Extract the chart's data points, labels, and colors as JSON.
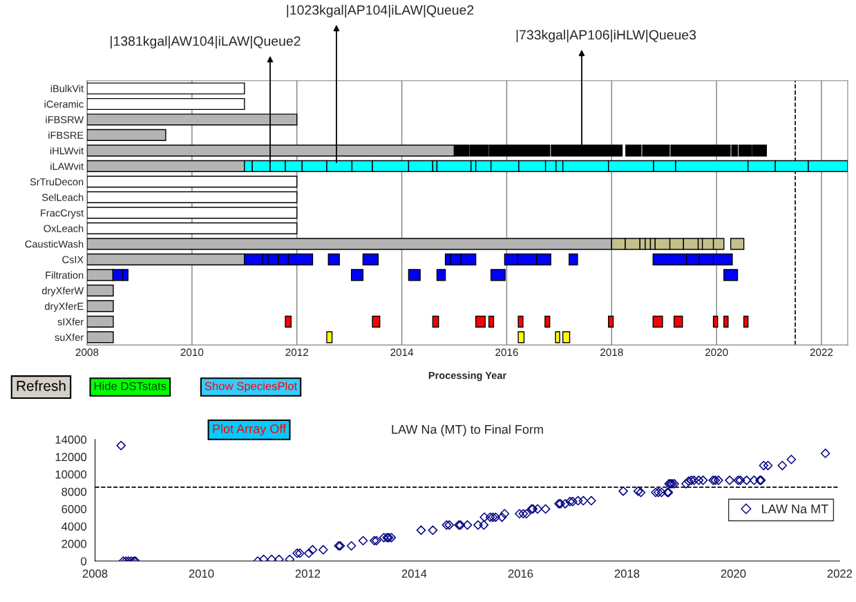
{
  "chart_data": [
    {
      "type": "bar",
      "orientation": "horizontal",
      "categories": [
        "iBulkVit",
        "iCeramic",
        "iFBSRW",
        "iFBSRE",
        "iHLWvit",
        "iLAWvit",
        "SrTruDecon",
        "SelLeach",
        "FracCryst",
        "OxLeach",
        "CausticWash",
        "CsIX",
        "Filtration",
        "dryXferW",
        "dryXferE",
        "sIXfer",
        "suXfer"
      ],
      "xlabel": "Processing Year",
      "xlim": [
        2008,
        2022.5
      ],
      "xticks": [
        2008,
        2010,
        2012,
        2014,
        2016,
        2018,
        2020,
        2022
      ],
      "grid": "x",
      "ref_lines": [
        {
          "axis": "x",
          "value": 2021.5,
          "color": "#000000",
          "line_style": "dashed"
        }
      ],
      "annotations": [
        "|1381kgal|AW104|iLAW|Queue2",
        "|1023kgal|AP104|iLAW|Queue2",
        "|733kgal|AP106|iHLW|Queue3",
        "Refresh",
        "Hide DSTstats",
        "Show SpeciesPlot"
      ],
      "series": [
        {
          "base": [
            2008,
            2008,
            2008,
            2008,
            2008,
            2008,
            2008,
            2008,
            2008,
            2008,
            2008,
            2008,
            2008,
            2008,
            2008,
            2008,
            2008
          ],
          "values": [
            3,
            3,
            4,
            1.5,
            7,
            3,
            4,
            4,
            4,
            4,
            10,
            3,
            0.5,
            0.5,
            0.5,
            0.5,
            0.5
          ],
          "colors": [
            "#ffffff",
            "#ffffff",
            "#b4b4b4",
            "#b4b4b4",
            "#b4b4b4",
            "#b4b4b4",
            "#ffffff",
            "#ffffff",
            "#ffffff",
            "#ffffff",
            "#b4b4b4",
            "#b4b4b4",
            "#b4b4b4",
            "#b4b4b4",
            "#b4b4b4",
            "#b4b4b4",
            "#b4b4b4"
          ]
        },
        {
          "base": [
            null,
            null,
            null,
            null,
            2015.0,
            2011.0,
            null,
            null,
            null,
            null,
            2018.0,
            2011.0,
            2008.49,
            null,
            null,
            2011.78,
            2012.57
          ],
          "values": [
            null,
            null,
            null,
            null,
            0.28,
            0.15,
            null,
            null,
            null,
            null,
            0.26,
            0.35,
            0.19,
            null,
            null,
            0.11,
            0.1
          ],
          "colors": [
            null,
            null,
            null,
            null,
            "#000000",
            "#00ffff",
            null,
            null,
            null,
            null,
            "#c4c08c",
            "#0000ff",
            "#0000ff",
            null,
            null,
            "#ff0000",
            "#ffff00"
          ]
        },
        {
          "base": [
            null,
            null,
            null,
            null,
            2015.3,
            2011.15,
            null,
            null,
            null,
            null,
            2018.26,
            2011.35,
            2008.68,
            null,
            null,
            2013.44,
            2016.22
          ],
          "values": [
            null,
            null,
            null,
            null,
            0.35,
            0.34,
            null,
            null,
            null,
            null,
            0.28,
            0.1,
            0.1,
            null,
            null,
            0.14,
            0.11
          ],
          "colors": [
            null,
            null,
            null,
            null,
            "#000000",
            "#00ffff",
            null,
            null,
            null,
            null,
            "#c4c08c",
            "#0000ff",
            "#0000ff",
            null,
            null,
            "#ff0000",
            "#ffff00"
          ]
        },
        {
          "base": [
            null,
            null,
            null,
            null,
            2015.67,
            2011.49,
            null,
            null,
            null,
            null,
            2018.54,
            2011.45,
            2013.04,
            null,
            null,
            2014.59,
            2016.93
          ],
          "values": [
            null,
            null,
            null,
            null,
            1.15,
            0.29,
            null,
            null,
            null,
            null,
            0.1,
            0.2,
            0.22,
            null,
            null,
            0.11,
            0.08
          ],
          "colors": [
            null,
            null,
            null,
            null,
            "#000000",
            "#00ffff",
            null,
            null,
            null,
            null,
            "#c4c08c",
            "#0000ff",
            "#0000ff",
            null,
            null,
            "#ff0000",
            "#ffff00"
          ]
        },
        {
          "base": [
            null,
            null,
            null,
            null,
            2016.85,
            2011.78,
            null,
            null,
            null,
            null,
            2018.64,
            2011.65,
            2014.13,
            null,
            null,
            2015.41,
            2017.07
          ],
          "values": [
            null,
            null,
            null,
            null,
            1.35,
            0.32,
            null,
            null,
            null,
            null,
            0.1,
            0.19,
            0.22,
            null,
            null,
            0.18,
            0.13
          ],
          "colors": [
            null,
            null,
            null,
            null,
            "#000000",
            "#00ffff",
            null,
            null,
            null,
            null,
            "#c4c08c",
            "#0000ff",
            "#0000ff",
            null,
            null,
            "#ff0000",
            "#ffff00"
          ]
        },
        {
          "base": [
            null,
            null,
            null,
            null,
            2018.27,
            2012.1,
            null,
            null,
            null,
            null,
            2018.74,
            2011.84,
            2014.67,
            null,
            null,
            2015.66,
            null
          ],
          "values": [
            null,
            null,
            null,
            null,
            0.29,
            0.47,
            null,
            null,
            null,
            null,
            0.09,
            0.46,
            0.16,
            null,
            null,
            0.09,
            null
          ],
          "colors": [
            null,
            null,
            null,
            null,
            "#000000",
            "#00ffff",
            null,
            null,
            null,
            null,
            "#c4c08c",
            "#0000ff",
            "#0000ff",
            null,
            null,
            "#ff0000",
            null
          ]
        },
        {
          "base": [
            null,
            null,
            null,
            null,
            2018.59,
            2012.57,
            null,
            null,
            null,
            null,
            2018.83,
            2012.6,
            2015.7,
            null,
            null,
            2016.22,
            null
          ],
          "values": [
            null,
            null,
            null,
            null,
            0.51,
            0.48,
            null,
            null,
            null,
            null,
            0.28,
            0.21,
            0.27,
            null,
            null,
            0.09,
            null
          ],
          "colors": [
            null,
            null,
            null,
            null,
            "#000000",
            "#00ffff",
            null,
            null,
            null,
            null,
            "#c4c08c",
            "#0000ff",
            "#0000ff",
            null,
            null,
            "#ff0000",
            null
          ]
        },
        {
          "base": [
            null,
            null,
            null,
            null,
            2019.13,
            2013.05,
            null,
            null,
            null,
            null,
            2019.11,
            2013.26,
            2020.14,
            null,
            null,
            2016.73,
            null
          ],
          "values": [
            null,
            null,
            null,
            null,
            1.13,
            0.39,
            null,
            null,
            null,
            null,
            0.26,
            0.29,
            0.26,
            null,
            null,
            0.09,
            null
          ],
          "colors": [
            null,
            null,
            null,
            null,
            "#000000",
            "#00ffff",
            null,
            null,
            null,
            null,
            "#c4c08c",
            "#0000ff",
            "#0000ff",
            null,
            null,
            "#ff0000",
            null
          ]
        },
        {
          "base": [
            null,
            null,
            null,
            null,
            2020.29,
            2013.44,
            null,
            null,
            null,
            null,
            2019.37,
            2014.83,
            null,
            null,
            null,
            2017.94,
            null
          ],
          "values": [
            null,
            null,
            null,
            null,
            0.11,
            0.69,
            null,
            null,
            null,
            null,
            0.28,
            0.1,
            null,
            null,
            null,
            0.09,
            null
          ],
          "colors": [
            null,
            null,
            null,
            null,
            "#000000",
            "#00ffff",
            null,
            null,
            null,
            null,
            "#c4c08c",
            "#0000ff",
            null,
            null,
            null,
            "#ff0000",
            null
          ]
        },
        {
          "base": [
            null,
            null,
            null,
            null,
            2020.43,
            2014.13,
            null,
            null,
            null,
            null,
            2019.65,
            2014.93,
            null,
            null,
            null,
            2018.79,
            null
          ],
          "values": [
            null,
            null,
            null,
            null,
            0.24,
            0.46,
            null,
            null,
            null,
            null,
            0.08,
            0.2,
            null,
            null,
            null,
            0.18,
            null
          ],
          "colors": [
            null,
            null,
            null,
            null,
            "#000000",
            "#00ffff",
            null,
            null,
            null,
            null,
            "#c4c08c",
            "#0000ff",
            null,
            null,
            null,
            "#ff0000",
            null
          ]
        },
        {
          "base": [
            null,
            null,
            null,
            null,
            2020.69,
            2014.59,
            null,
            null,
            null,
            null,
            2019.73,
            2015.13,
            null,
            null,
            null,
            2019.19,
            null
          ],
          "values": [
            null,
            null,
            null,
            null,
            0.26,
            0.08,
            null,
            null,
            null,
            null,
            0.21,
            0.28,
            null,
            null,
            null,
            0.16,
            null
          ],
          "colors": [
            null,
            null,
            null,
            null,
            "#000000",
            "#00ffff",
            null,
            null,
            null,
            null,
            "#c4c08c",
            "#0000ff",
            null,
            null,
            null,
            "#ff0000",
            null
          ]
        },
        {
          "base": [
            null,
            null,
            null,
            null,
            null,
            2014.67,
            null,
            null,
            null,
            null,
            2019.94,
            2015.96,
            null,
            null,
            null,
            2019.94,
            null
          ],
          "values": [
            null,
            null,
            null,
            null,
            null,
            0.65,
            null,
            null,
            null,
            null,
            0.2,
            0.25,
            null,
            null,
            null,
            0.08,
            null
          ],
          "colors": [
            null,
            null,
            null,
            null,
            null,
            "#00ffff",
            null,
            null,
            null,
            null,
            "#c4c08c",
            "#0000ff",
            null,
            null,
            null,
            "#ff0000",
            null
          ]
        },
        {
          "base": [
            null,
            null,
            null,
            null,
            null,
            2015.32,
            null,
            null,
            null,
            null,
            2020.27,
            2016.21,
            null,
            null,
            null,
            2020.14,
            null
          ],
          "values": [
            null,
            null,
            null,
            null,
            null,
            0.09,
            null,
            null,
            null,
            null,
            0.25,
            0.36,
            null,
            null,
            null,
            0.08,
            null
          ],
          "colors": [
            null,
            null,
            null,
            null,
            null,
            "#00ffff",
            null,
            null,
            null,
            null,
            "#c4c08c",
            "#0000ff",
            null,
            null,
            null,
            "#ff0000",
            null
          ]
        },
        {
          "base": [
            null,
            null,
            null,
            null,
            null,
            2015.41,
            null,
            null,
            null,
            null,
            null,
            2016.57,
            null,
            null,
            null,
            2020.52,
            null
          ],
          "values": [
            null,
            null,
            null,
            null,
            null,
            0.29,
            null,
            null,
            null,
            null,
            null,
            0.27,
            null,
            null,
            null,
            0.08,
            null
          ],
          "colors": [
            null,
            null,
            null,
            null,
            null,
            "#00ffff",
            null,
            null,
            null,
            null,
            null,
            "#0000ff",
            null,
            null,
            null,
            "#ff0000",
            null
          ]
        },
        {
          "base": [
            null,
            null,
            null,
            null,
            null,
            2015.7,
            null,
            null,
            null,
            null,
            null,
            2017.19,
            null,
            null,
            null,
            null,
            null
          ],
          "values": [
            null,
            null,
            null,
            null,
            null,
            0.53,
            null,
            null,
            null,
            null,
            null,
            0.16,
            null,
            null,
            null,
            null,
            null
          ],
          "colors": [
            null,
            null,
            null,
            null,
            null,
            "#00ffff",
            null,
            null,
            null,
            null,
            null,
            "#0000ff",
            null,
            null,
            null,
            null,
            null
          ]
        },
        {
          "base": [
            null,
            null,
            null,
            null,
            null,
            2016.23,
            null,
            null,
            null,
            null,
            null,
            2018.79,
            null,
            null,
            null,
            null,
            null
          ],
          "values": [
            null,
            null,
            null,
            null,
            null,
            0.51,
            null,
            null,
            null,
            null,
            null,
            0.64,
            null,
            null,
            null,
            null,
            null
          ],
          "colors": [
            null,
            null,
            null,
            null,
            null,
            "#00ffff",
            null,
            null,
            null,
            null,
            null,
            "#0000ff",
            null,
            null,
            null,
            null,
            null
          ]
        },
        {
          "base": [
            null,
            null,
            null,
            null,
            null,
            2016.74,
            null,
            null,
            null,
            null,
            null,
            2019.43,
            null,
            null,
            null,
            null,
            null
          ],
          "values": [
            null,
            null,
            null,
            null,
            null,
            0.2,
            null,
            null,
            null,
            null,
            null,
            0.24,
            null,
            null,
            null,
            null,
            null
          ],
          "colors": [
            null,
            null,
            null,
            null,
            null,
            "#00ffff",
            null,
            null,
            null,
            null,
            null,
            "#0000ff",
            null,
            null,
            null,
            null,
            null
          ]
        },
        {
          "base": [
            null,
            null,
            null,
            null,
            null,
            2016.94,
            null,
            null,
            null,
            null,
            null,
            2019.67,
            null,
            null,
            null,
            null,
            null
          ],
          "values": [
            null,
            null,
            null,
            null,
            null,
            0.13,
            null,
            null,
            null,
            null,
            null,
            0.27,
            null,
            null,
            null,
            null,
            null
          ],
          "colors": [
            null,
            null,
            null,
            null,
            null,
            "#00ffff",
            null,
            null,
            null,
            null,
            null,
            "#0000ff",
            null,
            null,
            null,
            null,
            null
          ]
        },
        {
          "base": [
            null,
            null,
            null,
            null,
            null,
            2017.07,
            null,
            null,
            null,
            null,
            null,
            2019.94,
            null,
            null,
            null,
            null,
            null
          ],
          "values": [
            null,
            null,
            null,
            null,
            null,
            0.87,
            null,
            null,
            null,
            null,
            null,
            0.36,
            null,
            null,
            null,
            null,
            null
          ],
          "colors": [
            null,
            null,
            null,
            null,
            null,
            "#00ffff",
            null,
            null,
            null,
            null,
            null,
            "#0000ff",
            null,
            null,
            null,
            null,
            null
          ]
        },
        {
          "base": [
            null,
            null,
            null,
            null,
            null,
            2017.94,
            null,
            null,
            null,
            null,
            null,
            null,
            null,
            null,
            null,
            null,
            null
          ],
          "values": [
            null,
            null,
            null,
            null,
            null,
            0.86,
            null,
            null,
            null,
            null,
            null,
            null,
            null,
            null,
            null,
            null,
            null
          ],
          "colors": [
            null,
            null,
            null,
            null,
            null,
            "#00ffff",
            null,
            null,
            null,
            null,
            null,
            null,
            null,
            null,
            null,
            null,
            null
          ]
        },
        {
          "base": [
            null,
            null,
            null,
            null,
            null,
            2018.8,
            null,
            null,
            null,
            null,
            null,
            null,
            null,
            null,
            null,
            null,
            null
          ],
          "values": [
            null,
            null,
            null,
            null,
            null,
            0.42,
            null,
            null,
            null,
            null,
            null,
            null,
            null,
            null,
            null,
            null,
            null
          ],
          "colors": [
            null,
            null,
            null,
            null,
            null,
            "#00ffff",
            null,
            null,
            null,
            null,
            null,
            null,
            null,
            null,
            null,
            null,
            null
          ]
        },
        {
          "base": [
            null,
            null,
            null,
            null,
            null,
            2019.22,
            null,
            null,
            null,
            null,
            null,
            null,
            null,
            null,
            null,
            null,
            null
          ],
          "values": [
            null,
            null,
            null,
            null,
            null,
            1.38,
            null,
            null,
            null,
            null,
            null,
            null,
            null,
            null,
            null,
            null,
            null
          ],
          "colors": [
            null,
            null,
            null,
            null,
            null,
            "#00ffff",
            null,
            null,
            null,
            null,
            null,
            null,
            null,
            null,
            null,
            null,
            null
          ]
        },
        {
          "base": [
            null,
            null,
            null,
            null,
            null,
            2020.6,
            null,
            null,
            null,
            null,
            null,
            null,
            null,
            null,
            null,
            null,
            null
          ],
          "values": [
            null,
            null,
            null,
            null,
            null,
            0.52,
            null,
            null,
            null,
            null,
            null,
            null,
            null,
            null,
            null,
            null,
            null
          ],
          "colors": [
            null,
            null,
            null,
            null,
            null,
            "#00ffff",
            null,
            null,
            null,
            null,
            null,
            null,
            null,
            null,
            null,
            null,
            null
          ]
        },
        {
          "base": [
            null,
            null,
            null,
            null,
            null,
            2021.12,
            null,
            null,
            null,
            null,
            null,
            null,
            null,
            null,
            null,
            null,
            null
          ],
          "values": [
            null,
            null,
            null,
            null,
            null,
            0.63,
            null,
            null,
            null,
            null,
            null,
            null,
            null,
            null,
            null,
            null,
            null
          ],
          "colors": [
            null,
            null,
            null,
            null,
            null,
            "#00ffff",
            null,
            null,
            null,
            null,
            null,
            null,
            null,
            null,
            null,
            null,
            null
          ]
        },
        {
          "base": [
            null,
            null,
            null,
            null,
            null,
            2021.75,
            null,
            null,
            null,
            null,
            null,
            null,
            null,
            null,
            null,
            null,
            null
          ],
          "values": [
            null,
            null,
            null,
            null,
            null,
            0.75,
            null,
            null,
            null,
            null,
            null,
            null,
            null,
            null,
            null,
            null,
            null
          ],
          "colors": [
            null,
            null,
            null,
            null,
            null,
            "#00ffff",
            null,
            null,
            null,
            null,
            null,
            null,
            null,
            null,
            null,
            null,
            null
          ]
        }
      ]
    },
    {
      "type": "scatter",
      "title": "LAW Na (MT) to Final Form",
      "xlim": [
        2008,
        2022
      ],
      "xticks": [
        2008,
        2010,
        2012,
        2014,
        2016,
        2018,
        2020,
        2022
      ],
      "ylim": [
        0,
        14000
      ],
      "yticks": [
        0,
        2000,
        4000,
        6000,
        8000,
        10000,
        12000,
        14000
      ],
      "marker": "diamond",
      "legend": "right",
      "ref_lines": [
        {
          "axis": "y",
          "value": 8500,
          "color": "#000000",
          "line_style": "dashed"
        }
      ],
      "annotations": [
        "Plot Array Off"
      ],
      "series": [
        {
          "name": "LAW Na MT",
          "color": "#000080",
          "x": [
            2008.49,
            2008.53,
            2008.58,
            2008.63,
            2008.68,
            2008.73,
            2008.76,
            2011.06,
            2011.17,
            2011.32,
            2011.46,
            2011.66,
            2011.8,
            2011.85,
            2012.02,
            2012.09,
            2012.29,
            2012.58,
            2012.61,
            2012.82,
            2013.04,
            2013.25,
            2013.29,
            2013.43,
            2013.49,
            2013.52,
            2013.57,
            2014.13,
            2014.35,
            2014.61,
            2014.66,
            2014.84,
            2014.87,
            2015.0,
            2015.2,
            2015.31,
            2015.32,
            2015.43,
            2015.48,
            2015.53,
            2015.65,
            2015.7,
            2015.98,
            2016.05,
            2016.11,
            2016.21,
            2016.23,
            2016.32,
            2016.47,
            2016.72,
            2016.75,
            2016.84,
            2016.93,
            2016.98,
            2017.08,
            2017.18,
            2017.33,
            2017.93,
            2018.21,
            2018.26,
            2018.54,
            2018.59,
            2018.65,
            2018.76,
            2018.78,
            2018.79,
            2018.82,
            2018.85,
            2018.89,
            2019.11,
            2019.16,
            2019.21,
            2019.26,
            2019.35,
            2019.43,
            2019.62,
            2019.66,
            2019.72,
            2019.93,
            2020.09,
            2020.13,
            2020.25,
            2020.39,
            2020.5,
            2020.52,
            2020.57,
            2020.65,
            2020.92,
            2021.09,
            2021.73
          ],
          "values": [
            13300,
            0,
            0,
            0,
            0,
            0,
            0,
            0,
            200,
            200,
            200,
            200,
            900,
            900,
            900,
            1300,
            1300,
            1750,
            1750,
            1750,
            2350,
            2350,
            2350,
            2700,
            2700,
            2700,
            2700,
            3550,
            3550,
            4150,
            4150,
            4150,
            4150,
            4150,
            4150,
            4150,
            5050,
            5050,
            5050,
            5050,
            5050,
            5450,
            5450,
            5450,
            5450,
            6000,
            6000,
            6000,
            6000,
            6600,
            6600,
            6600,
            6850,
            6850,
            6950,
            6950,
            6950,
            8050,
            8050,
            7900,
            7900,
            7900,
            7900,
            7900,
            7900,
            8900,
            8900,
            8900,
            8900,
            8900,
            9200,
            9300,
            9300,
            9300,
            9300,
            9300,
            9300,
            9300,
            9300,
            9300,
            9300,
            9300,
            9300,
            9300,
            9300,
            11000,
            11000,
            11000,
            11700,
            12400
          ]
        }
      ]
    }
  ]
}
